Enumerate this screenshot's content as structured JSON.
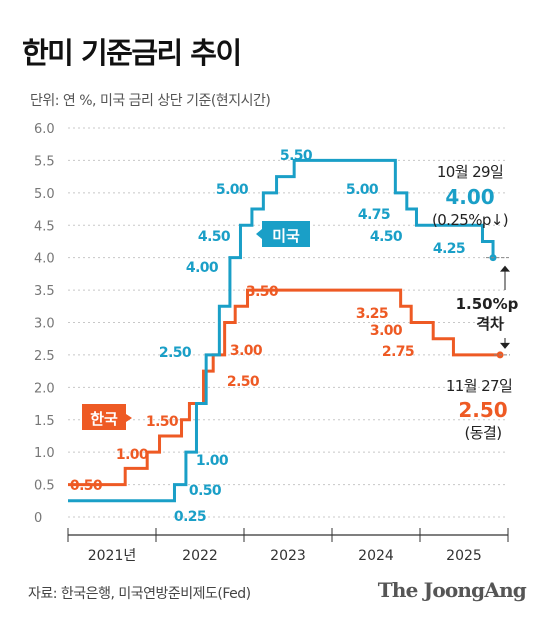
{
  "title": "한미 기준금리 추이",
  "unit_note": "단위: 연 %, 미국 금리 상단 기준(현지시간)",
  "source": "자료: 한국은행, 미국연방준비제도(Fed)",
  "brand": "The JoongAng",
  "colors": {
    "us": "#1a9fc7",
    "korea": "#ee5a24",
    "grid": "#c8c8c8",
    "axis": "#333333"
  },
  "chart_data": {
    "type": "line",
    "step": true,
    "ylim": [
      0,
      6.0
    ],
    "yticks": [
      "0",
      "0.5",
      "1.0",
      "1.5",
      "2.0",
      "2.5",
      "3.0",
      "3.5",
      "4.0",
      "4.5",
      "5.0",
      "5.5",
      "6.0"
    ],
    "xlim": [
      2021.0,
      2026.0
    ],
    "year_labels": [
      "2021년",
      "2022",
      "2023",
      "2024",
      "2025"
    ],
    "series": [
      {
        "name": "미국",
        "key": "us",
        "points": [
          {
            "x": 2021.0,
            "y": 0.25
          },
          {
            "x": 2022.21,
            "y": 0.5
          },
          {
            "x": 2022.34,
            "y": 1.0
          },
          {
            "x": 2022.46,
            "y": 1.75
          },
          {
            "x": 2022.57,
            "y": 2.5
          },
          {
            "x": 2022.72,
            "y": 3.25
          },
          {
            "x": 2022.84,
            "y": 4.0
          },
          {
            "x": 2022.96,
            "y": 4.5
          },
          {
            "x": 2023.09,
            "y": 4.75
          },
          {
            "x": 2023.22,
            "y": 5.0
          },
          {
            "x": 2023.37,
            "y": 5.25
          },
          {
            "x": 2023.57,
            "y": 5.5
          },
          {
            "x": 2024.72,
            "y": 5.0
          },
          {
            "x": 2024.85,
            "y": 4.75
          },
          {
            "x": 2024.96,
            "y": 4.5
          },
          {
            "x": 2025.71,
            "y": 4.25
          },
          {
            "x": 2025.83,
            "y": 4.0
          }
        ],
        "labels": [
          "0.25",
          "0.50",
          "1.00",
          "2.50",
          "4.00",
          "4.50",
          "5.00",
          "5.50",
          "5.00",
          "4.75",
          "4.50",
          "4.25"
        ]
      },
      {
        "name": "한국",
        "key": "korea",
        "points": [
          {
            "x": 2021.0,
            "y": 0.5
          },
          {
            "x": 2021.65,
            "y": 0.75
          },
          {
            "x": 2021.9,
            "y": 1.0
          },
          {
            "x": 2022.04,
            "y": 1.25
          },
          {
            "x": 2022.29,
            "y": 1.5
          },
          {
            "x": 2022.38,
            "y": 1.75
          },
          {
            "x": 2022.54,
            "y": 2.25
          },
          {
            "x": 2022.65,
            "y": 2.5
          },
          {
            "x": 2022.78,
            "y": 3.0
          },
          {
            "x": 2022.9,
            "y": 3.25
          },
          {
            "x": 2023.04,
            "y": 3.5
          },
          {
            "x": 2024.78,
            "y": 3.25
          },
          {
            "x": 2024.9,
            "y": 3.0
          },
          {
            "x": 2025.15,
            "y": 2.75
          },
          {
            "x": 2025.38,
            "y": 2.5
          },
          {
            "x": 2025.91,
            "y": 2.5
          }
        ],
        "labels": [
          "0.50",
          "1.00",
          "1.50",
          "2.50",
          "3.00",
          "3.50",
          "3.25",
          "3.00",
          "2.75"
        ]
      }
    ],
    "annotations": {
      "us_date": "10월 29일",
      "us_value": "4.00",
      "us_change": "(0.25%p↓)",
      "gap_value": "1.50%p",
      "gap_label": "격차",
      "kr_date": "11월 27일",
      "kr_value": "2.50",
      "kr_change": "(동결)"
    }
  }
}
